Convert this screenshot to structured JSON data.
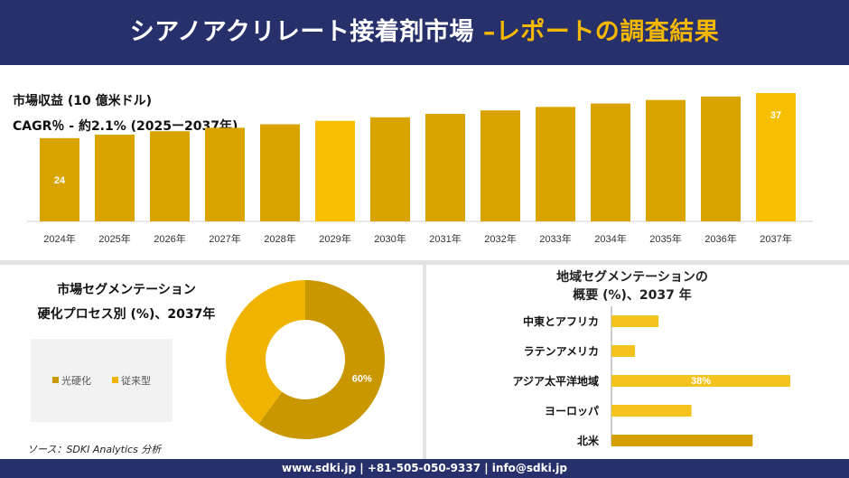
{
  "header": {
    "title_main": "シアノアクリレート接着剤市場 ",
    "title_accent": "–レポートの調査結果"
  },
  "metrics": {
    "revenue_label": "市場収益 (10 億米ドル)",
    "cagr_label": "CAGR％ - 約2.1% (2025ー2037年)"
  },
  "colors": {
    "header_bg": "#27306b",
    "accent": "#f5b800",
    "bar_dark": "#d9a300",
    "bar_light": "#f7bf00",
    "donut_dark": "#c99700",
    "donut_light": "#f0b400"
  },
  "segment": {
    "title_line1": "市場セグメンテーション",
    "title_line2": "硬化プロセス別 (%)、2037年"
  },
  "region": {
    "title_line1": "地域セグメンテーションの",
    "title_line2": "概要 (%)、2037 年"
  },
  "source": "ソース：SDKI Analytics 分析",
  "footer": "www.sdki.jp | +81-505-050-9337 | info@sdki.jp",
  "chart_data": [
    {
      "type": "bar",
      "title": "市場収益 (10 億米ドル)",
      "categories": [
        "2024年",
        "2025年",
        "2026年",
        "2027年",
        "2028年",
        "2029年",
        "2030年",
        "2031年",
        "2032年",
        "2033年",
        "2034年",
        "2035年",
        "2036年",
        "2037年"
      ],
      "values": [
        24,
        25,
        26,
        27,
        28,
        29,
        30,
        31,
        32,
        33,
        34,
        35,
        36,
        37
      ],
      "data_labels": {
        "2024年": "24",
        "2037年": "37"
      },
      "ylim": [
        0,
        37
      ],
      "grid": false
    },
    {
      "type": "pie",
      "style": "donut",
      "labels": [
        "光硬化",
        "従来型"
      ],
      "values": [
        60,
        40
      ],
      "data_labels": [
        "60%",
        ""
      ],
      "legend": "center-left"
    },
    {
      "type": "bar",
      "orientation": "horizontal",
      "categories": [
        "中東とアフリカ",
        "ラテンアメリカ",
        "アジア太平洋地域",
        "ヨーロッパ",
        "北米"
      ],
      "values": [
        10,
        5,
        38,
        17,
        30
      ],
      "data_labels": [
        "",
        "",
        "38%",
        "",
        ""
      ],
      "grid": false
    }
  ]
}
